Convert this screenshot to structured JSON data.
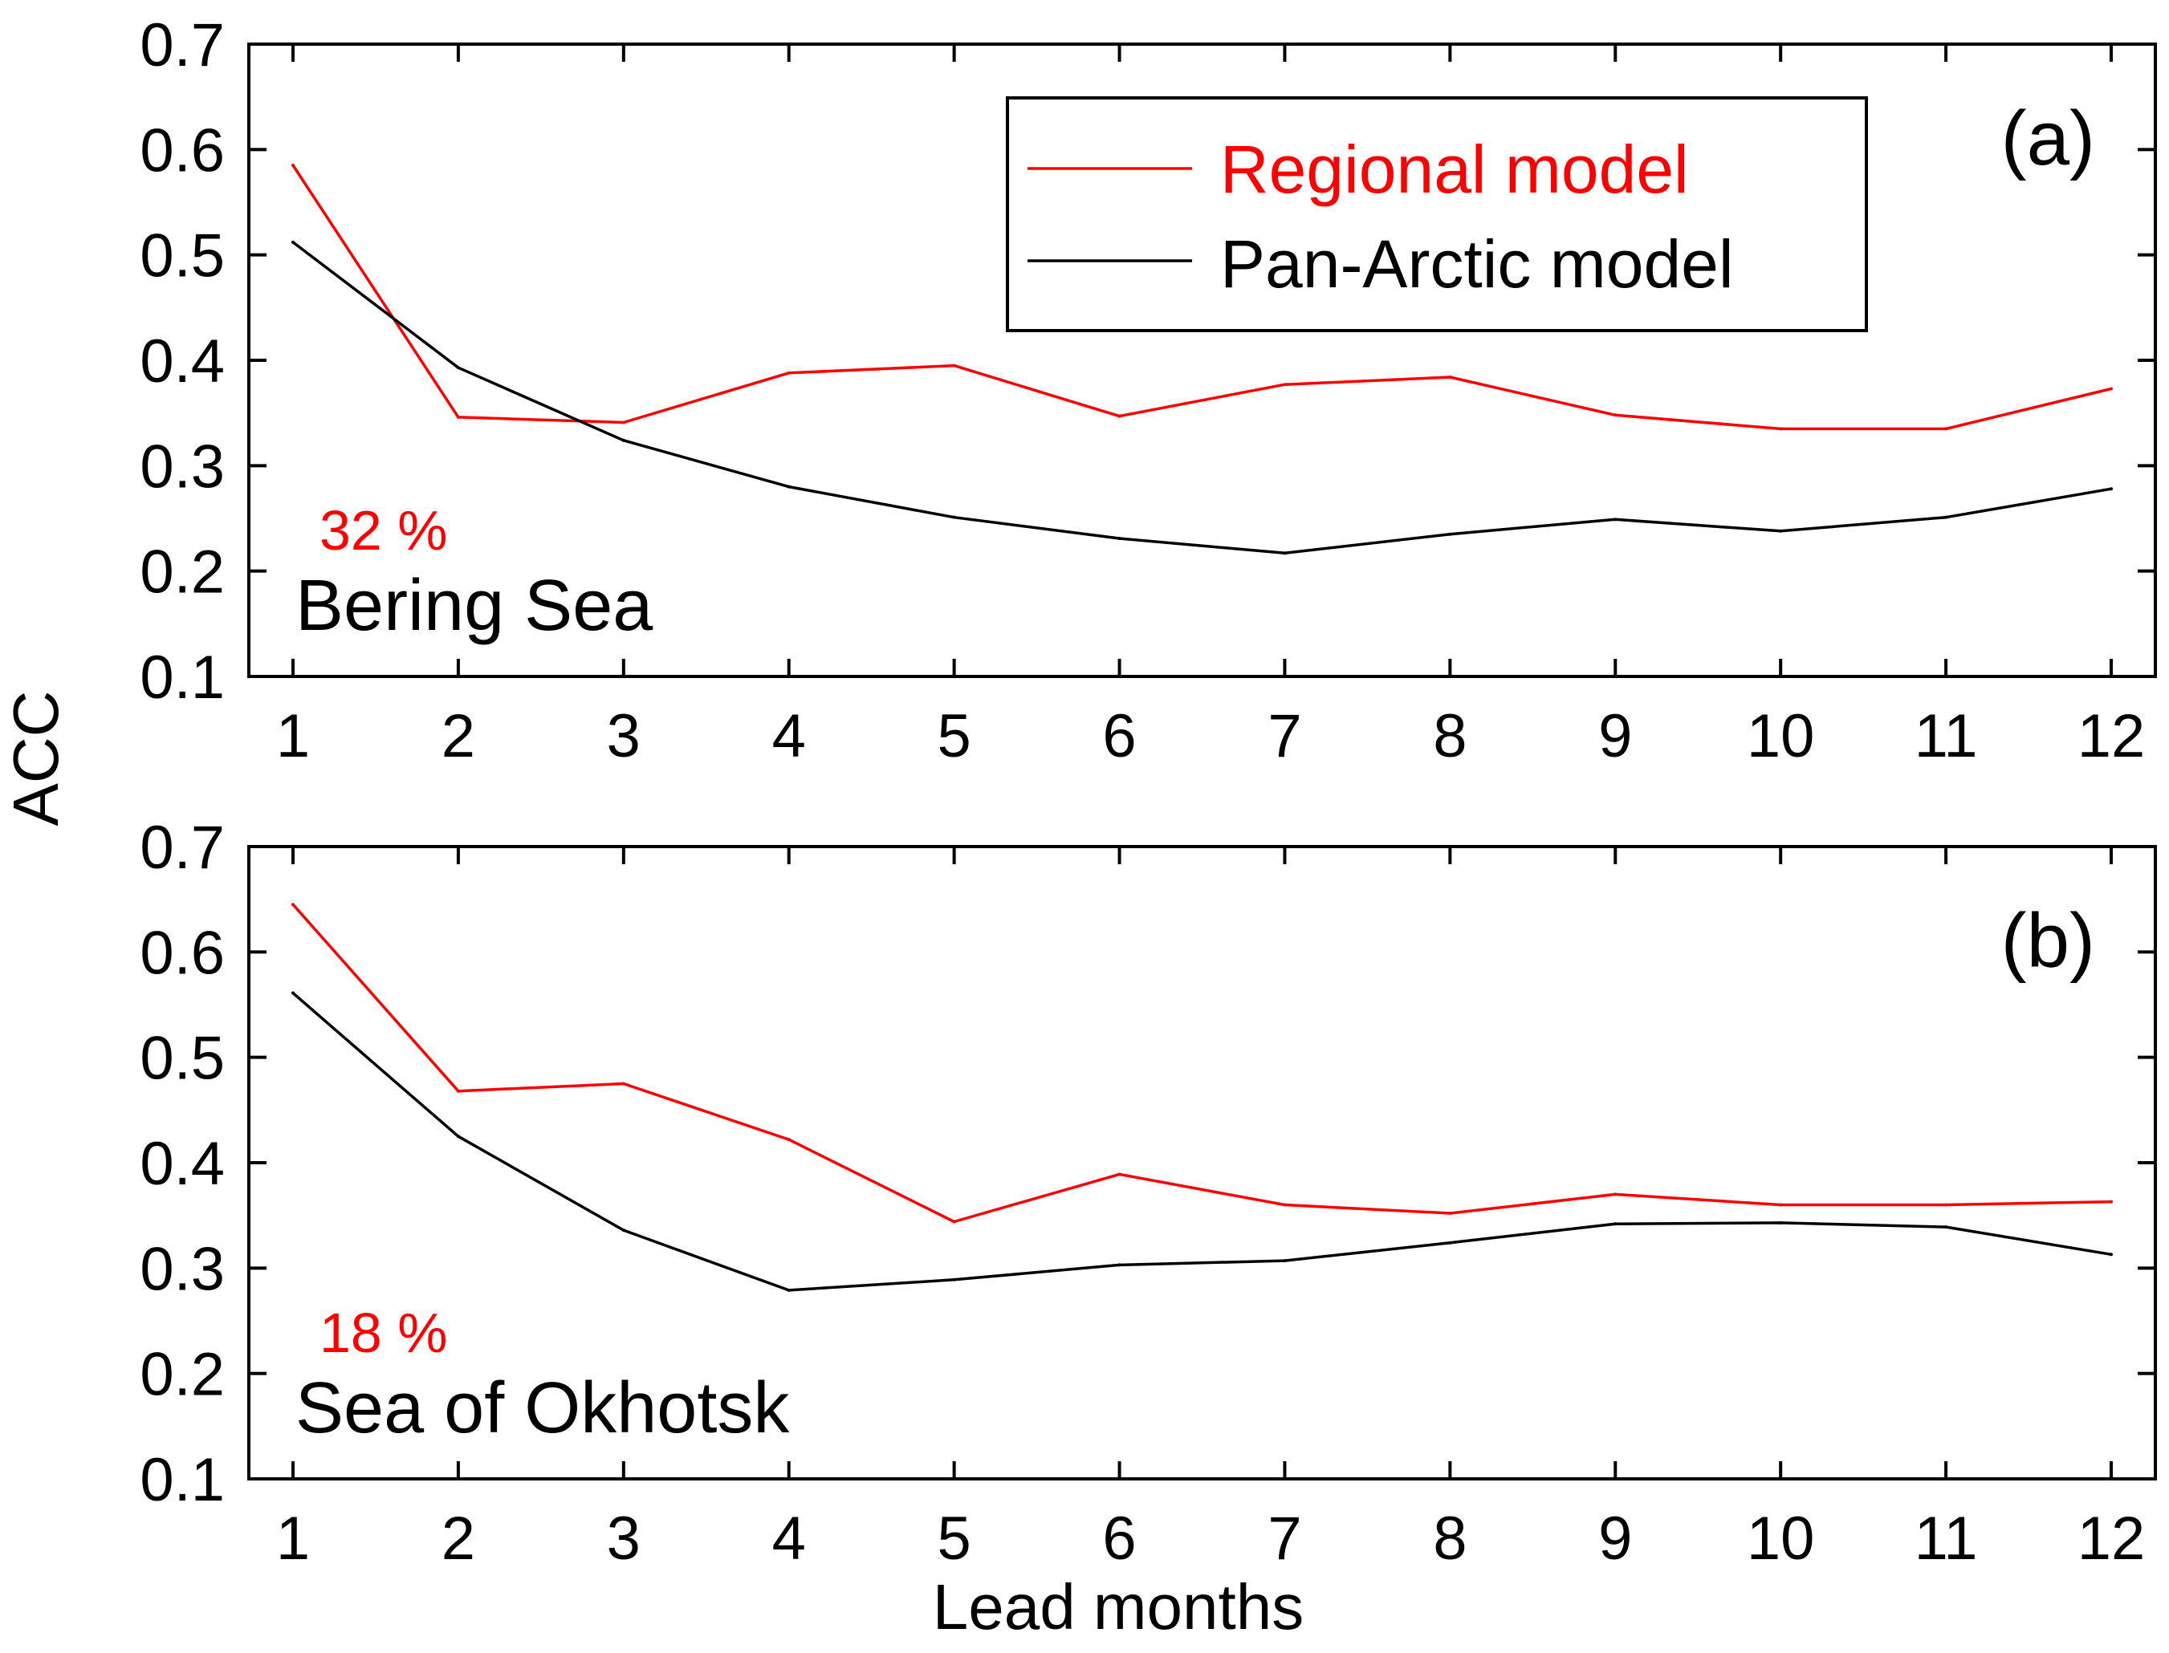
{
  "colors": {
    "regional": "#ff0000",
    "pan_arctic": "#000000",
    "axes": "#000000"
  },
  "axes": {
    "ylabel": "ACC",
    "xlabel": "Lead months"
  },
  "legend": {
    "placement": "top-right of panel (a)",
    "items": [
      "Regional model",
      "Pan-Arctic model"
    ]
  },
  "chart_data": [
    {
      "type": "line",
      "panel_tag": "(a)",
      "region": "Bering Sea",
      "percent": "32 %",
      "x": [
        1,
        2,
        3,
        4,
        5,
        6,
        7,
        8,
        9,
        10,
        11,
        12
      ],
      "xticks": [
        "1",
        "2",
        "3",
        "4",
        "5",
        "6",
        "7",
        "8",
        "9",
        "10",
        "11",
        "12"
      ],
      "ylim": [
        0.1,
        0.7
      ],
      "yticks": [
        "0.1",
        "0.2",
        "0.3",
        "0.4",
        "0.5",
        "0.6",
        "0.7"
      ],
      "series": [
        {
          "name": "Regional model",
          "values": [
            0.585,
            0.346,
            0.341,
            0.388,
            0.395,
            0.347,
            0.377,
            0.384,
            0.348,
            0.335,
            0.335,
            0.373
          ]
        },
        {
          "name": "Pan-Arctic model",
          "values": [
            0.512,
            0.393,
            0.324,
            0.28,
            0.251,
            0.231,
            0.217,
            0.235,
            0.249,
            0.238,
            0.251,
            0.278
          ]
        }
      ]
    },
    {
      "type": "line",
      "panel_tag": "(b)",
      "region": "Sea of Okhotsk",
      "percent": "18 %",
      "x": [
        1,
        2,
        3,
        4,
        5,
        6,
        7,
        8,
        9,
        10,
        11,
        12
      ],
      "xticks": [
        "1",
        "2",
        "3",
        "4",
        "5",
        "6",
        "7",
        "8",
        "9",
        "10",
        "11",
        "12"
      ],
      "ylim": [
        0.1,
        0.7
      ],
      "yticks": [
        "0.1",
        "0.2",
        "0.3",
        "0.4",
        "0.5",
        "0.6",
        "0.7"
      ],
      "series": [
        {
          "name": "Regional model",
          "values": [
            0.645,
            0.468,
            0.475,
            0.422,
            0.344,
            0.389,
            0.36,
            0.352,
            0.37,
            0.36,
            0.36,
            0.363
          ]
        },
        {
          "name": "Pan-Arctic model",
          "values": [
            0.561,
            0.425,
            0.336,
            0.279,
            0.289,
            0.303,
            0.307,
            0.324,
            0.342,
            0.343,
            0.339,
            0.313
          ]
        }
      ]
    }
  ]
}
